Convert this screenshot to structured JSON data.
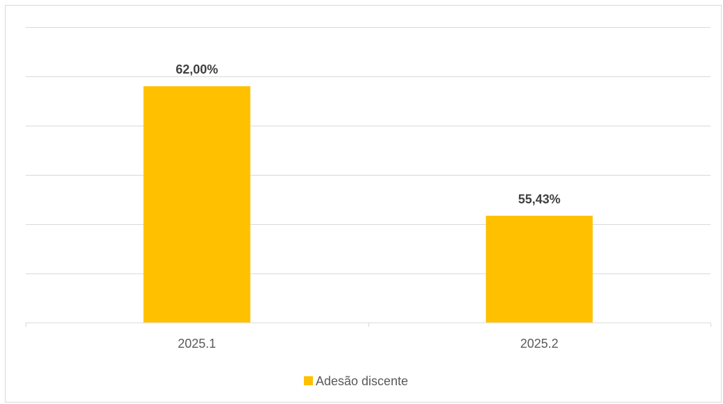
{
  "chart_data": {
    "type": "bar",
    "categories": [
      "2025.1",
      "2025.2"
    ],
    "series": [
      {
        "name": "Adesão discente",
        "values": [
          62.0,
          55.43
        ],
        "labels": [
          "62,00%",
          "55,43%"
        ],
        "color": "#ffc000"
      }
    ],
    "title": "",
    "xlabel": "",
    "ylabel": "",
    "ylim": [
      50,
      65
    ],
    "y_tick_step": 2.5,
    "y_tick_labels_visible": false,
    "grid": true,
    "legend": "bottom"
  }
}
